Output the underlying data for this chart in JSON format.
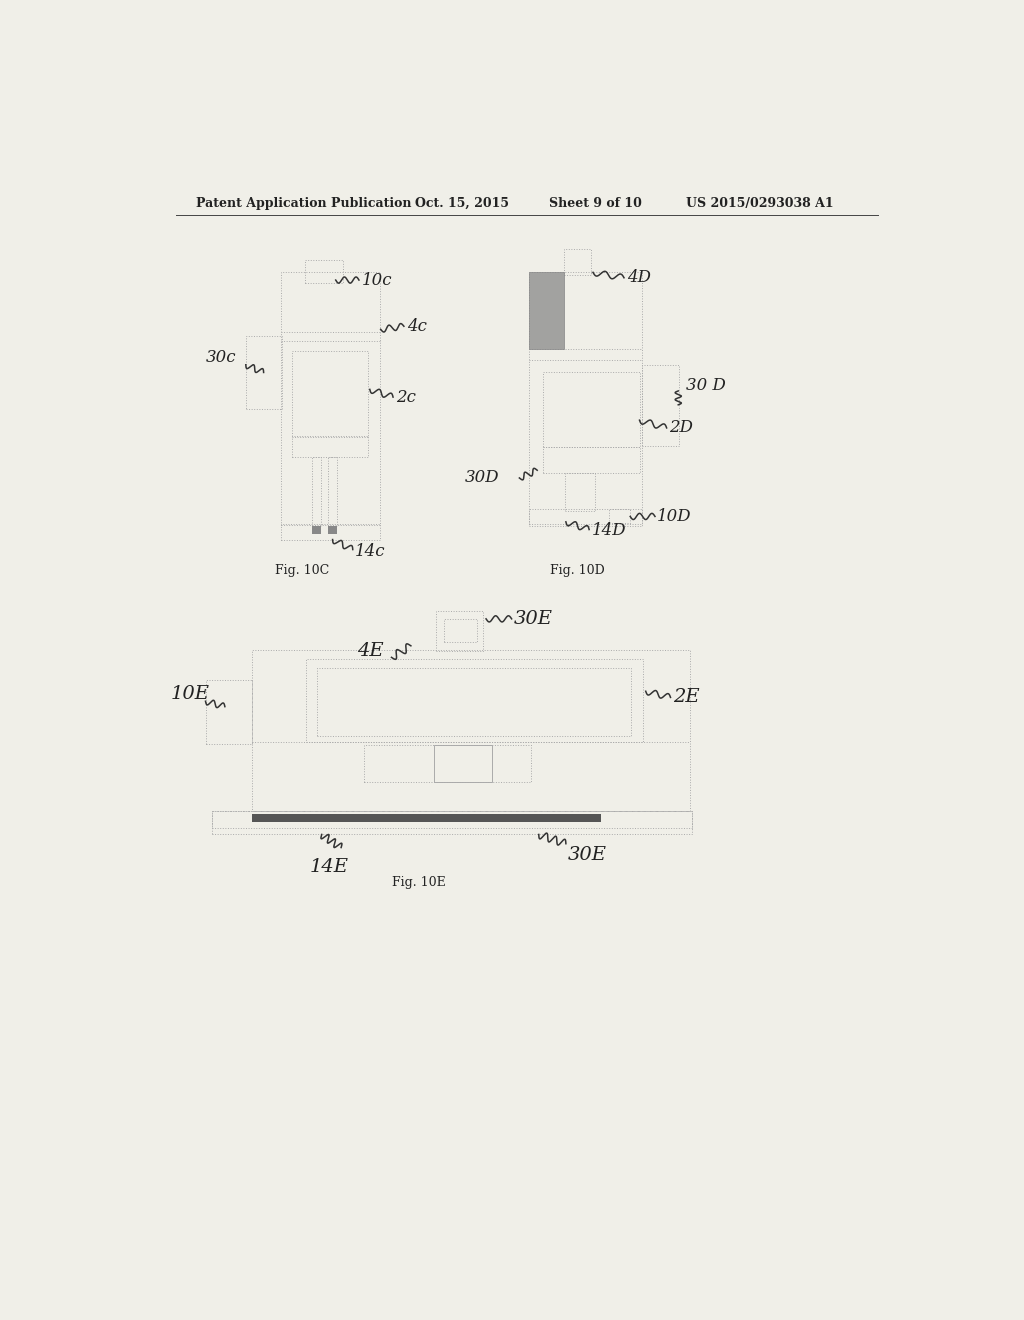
{
  "bg_color": "#f0efe8",
  "header_text": "Patent Application Publication",
  "header_date": "Oct. 15, 2015",
  "header_sheet": "Sheet 9 of 10",
  "header_patent": "US 2015/0293038 A1",
  "fig_labels": [
    "Fig. 10C",
    "Fig. 10D",
    "Fig. 10E"
  ]
}
